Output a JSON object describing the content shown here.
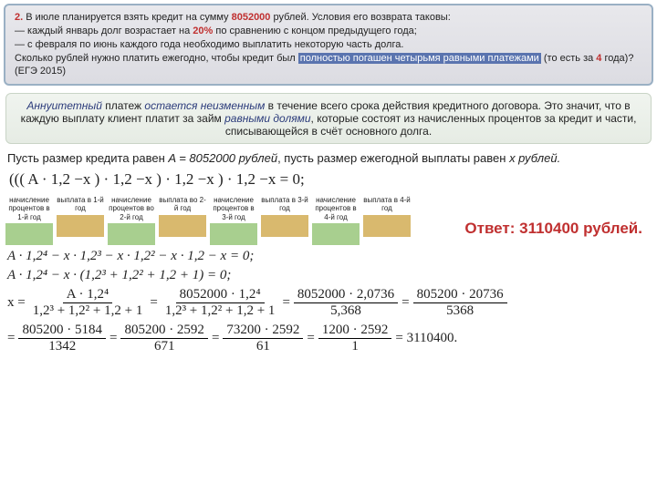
{
  "problem": {
    "num": "2.",
    "l1a": "В июле планируется взять кредит на сумму ",
    "amount": "8052000",
    "l1b": " рублей. Условия его возврата таковы:",
    "l2a": "— каждый январь долг возрастает на ",
    "pct": "20%",
    "l2b": " по сравнению с концом предыдущего года;",
    "l3": "— с февраля по июнь каждого года необходимо выплатить некоторую часть долга.",
    "l4a": "Сколько рублей нужно платить ежегодно, чтобы кредит был ",
    "l4hl": "полностью погашен четырьмя равными платежами",
    "l4b": " (то есть за ",
    "yrs": "4",
    "l4c": " года)? (ЕГЭ 2015)"
  },
  "def": {
    "t1": "Аннуитетный",
    "t2": " платеж ",
    "t3": "остается неизменным",
    "t4": " в течение всего срока действия кредитного договора. Это значит, что в каждую выплату клиент платит за займ ",
    "t5": "равными долями",
    "t6": ", которые состоят из начисленных процентов за кредит и части, списывающейся в счёт основного долга."
  },
  "let": {
    "a": "Пусть размер кредита равен ",
    "b": "A = 8052000 рублей",
    "c": ", пусть размер ежегодной выплаты равен ",
    "d": "x рублей."
  },
  "equation": "((( A · 1,2 −x ) · 1,2   −x )  · 1,2   −x ) · 1,2   −x   = 0;",
  "tags": [
    {
      "t": "начисление процентов в 1-й год",
      "c": "g"
    },
    {
      "t": "выплата в 1-й год",
      "c": "o"
    },
    {
      "t": "начисление процентов во 2-й год",
      "c": "g"
    },
    {
      "t": "выплата во 2-й год",
      "c": "o"
    },
    {
      "t": "начисление процентов в 3-й год",
      "c": "g"
    },
    {
      "t": "выплата в 3-й год",
      "c": "o"
    },
    {
      "t": "начисление процентов в 4-й год",
      "c": "g"
    },
    {
      "t": "выплата в 4-й год",
      "c": "o"
    }
  ],
  "answer": "Ответ: 3110400 рублей.",
  "m1": "A · 1,2⁴ − x · 1,2³ − x · 1,2² − x · 1,2 − x = 0;",
  "m2": "A · 1,2⁴ − x · (1,2³ + 1,2² + 1,2 + 1) = 0;",
  "fracs": {
    "xeq": "x =",
    "f1n": "A · 1,2⁴",
    "f1d": "1,2³ + 1,2² + 1,2 + 1",
    "f2n": "8052000 · 1,2⁴",
    "f2d": "1,2³ + 1,2² + 1,2 + 1",
    "f3n": "8052000 · 2,0736",
    "f3d": "5,368",
    "f4n": "805200 · 20736",
    "f4d": "5368",
    "f5n": "805200 · 5184",
    "f5d": "1342",
    "f6n": "805200 · 2592",
    "f6d": "671",
    "f7n": "73200 · 2592",
    "f7d": "61",
    "f8n": "1200 · 2592",
    "f8d": "1",
    "res": "= 3110400."
  }
}
